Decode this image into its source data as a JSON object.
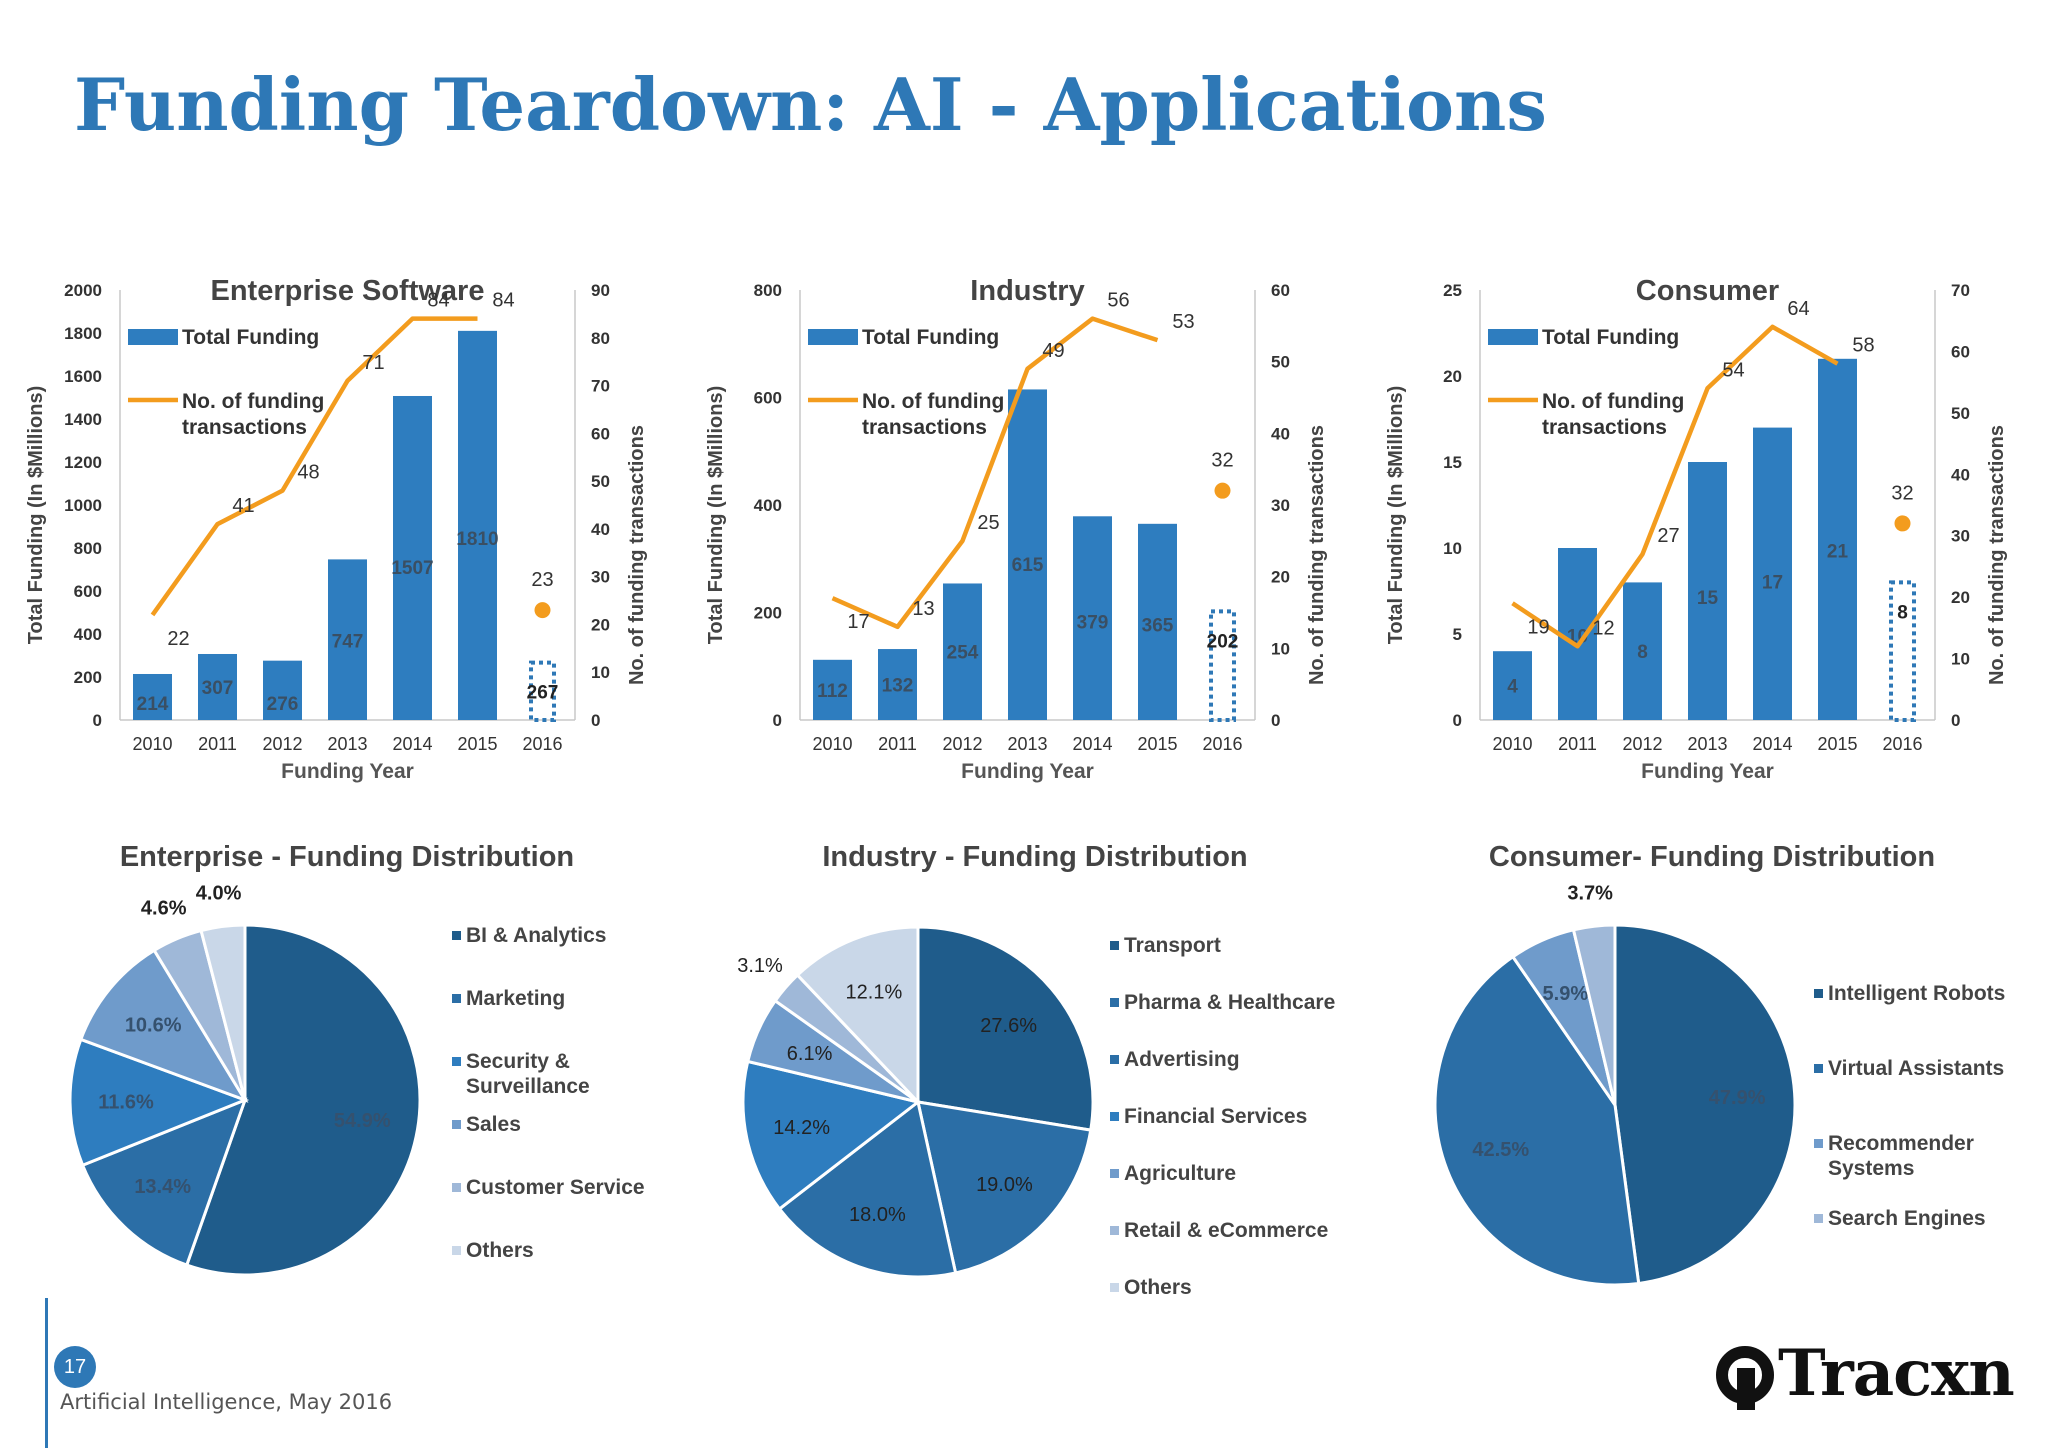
{
  "page": {
    "title": "Funding Teardown: AI - Applications",
    "page_number": "17",
    "footer": "Artificial Intelligence, May 2016",
    "logo_text": "Tracxn"
  },
  "colors": {
    "title": "#2e78b6",
    "bar": "#2e7dbf",
    "line": "#f39c1e",
    "pie_palette": [
      "#1f5c8b",
      "#2b6ea6",
      "#2e7dbf",
      "#6f9bcb",
      "#9fb8d8",
      "#c9d7e8"
    ]
  },
  "chart_data": [
    {
      "type": "bar",
      "title": "Enterprise Software",
      "xlabel": "Funding Year",
      "ylabel": "Total Funding (In $Millions)",
      "y2label": "No. of funding transactions",
      "categories": [
        "2010",
        "2011",
        "2012",
        "2013",
        "2014",
        "2015",
        "2016"
      ],
      "ylim": [
        0,
        2000
      ],
      "yticks": [
        0,
        200,
        400,
        600,
        800,
        1000,
        1200,
        1400,
        1600,
        1800,
        2000
      ],
      "y2lim": [
        0,
        90
      ],
      "y2ticks": [
        0,
        10,
        20,
        30,
        40,
        50,
        60,
        70,
        80,
        90
      ],
      "legend": [
        "Total Funding",
        "No. of funding transactions"
      ],
      "legend_position": "top-left",
      "series": [
        {
          "name": "Total Funding",
          "kind": "bar",
          "axis": "left",
          "values": [
            214,
            307,
            276,
            747,
            1507,
            1810,
            267
          ],
          "last_dotted": true
        },
        {
          "name": "No. of funding transactions",
          "kind": "line",
          "axis": "right",
          "values": [
            22,
            41,
            48,
            71,
            84,
            84,
            23
          ],
          "last_as_point": true
        }
      ]
    },
    {
      "type": "bar",
      "title": "Industry",
      "xlabel": "Funding Year",
      "ylabel": "Total Funding (In $Millions)",
      "y2label": "No. of funding transactions",
      "categories": [
        "2010",
        "2011",
        "2012",
        "2013",
        "2014",
        "2015",
        "2016"
      ],
      "ylim": [
        0,
        800
      ],
      "yticks": [
        0,
        200,
        400,
        600,
        800
      ],
      "y2lim": [
        0,
        60
      ],
      "y2ticks": [
        0,
        10,
        20,
        30,
        40,
        50,
        60
      ],
      "legend": [
        "Total Funding",
        "No. of funding transactions"
      ],
      "legend_position": "top-left",
      "series": [
        {
          "name": "Total Funding",
          "kind": "bar",
          "axis": "left",
          "values": [
            112,
            132,
            254,
            615,
            379,
            365,
            202
          ],
          "last_dotted": true
        },
        {
          "name": "No. of funding transactions",
          "kind": "line",
          "axis": "right",
          "values": [
            17,
            13,
            25,
            49,
            56,
            53,
            32
          ],
          "last_as_point": true
        }
      ]
    },
    {
      "type": "bar",
      "title": "Consumer",
      "xlabel": "Funding Year",
      "ylabel": "Total Funding (In $Millions)",
      "y2label": "No. of funding transactions",
      "categories": [
        "2010",
        "2011",
        "2012",
        "2013",
        "2014",
        "2015",
        "2016"
      ],
      "ylim": [
        0,
        25
      ],
      "yticks": [
        0,
        5,
        10,
        15,
        20,
        25
      ],
      "y2lim": [
        0,
        70
      ],
      "y2ticks": [
        0,
        10,
        20,
        30,
        40,
        50,
        60,
        70
      ],
      "legend": [
        "Total Funding",
        "No. of funding transactions"
      ],
      "legend_position": "top-left",
      "series": [
        {
          "name": "Total Funding",
          "kind": "bar",
          "axis": "left",
          "values": [
            4,
            10,
            8,
            15,
            17,
            21,
            8
          ],
          "last_dotted": true
        },
        {
          "name": "No. of funding transactions",
          "kind": "line",
          "axis": "right",
          "values": [
            19,
            12,
            27,
            54,
            64,
            58,
            32
          ],
          "last_as_point": true
        }
      ]
    },
    {
      "type": "pie",
      "title": "Enterprise  - Funding Distribution",
      "legend_position": "right",
      "slices": [
        {
          "label": "BI & Analytics",
          "value": 54.9,
          "display": "54.9%"
        },
        {
          "label": "Marketing",
          "value": 13.4,
          "display": "13.4%"
        },
        {
          "label": "Security & Surveillance",
          "value": 11.6,
          "display": "11.6%"
        },
        {
          "label": "Sales",
          "value": 10.6,
          "display": "10.6%"
        },
        {
          "label": "Customer Service",
          "value": 4.6,
          "display": "4.6%"
        },
        {
          "label": "Others",
          "value": 4.0,
          "display": "4.0%"
        }
      ]
    },
    {
      "type": "pie",
      "title": "Industry - Funding Distribution",
      "legend_position": "right",
      "slices": [
        {
          "label": "Transport",
          "value": 27.6,
          "display": "27.6%"
        },
        {
          "label": "Pharma & Healthcare",
          "value": 19.0,
          "display": "19.0%"
        },
        {
          "label": "Advertising",
          "value": 18.0,
          "display": "18.0%"
        },
        {
          "label": "Financial Services",
          "value": 14.2,
          "display": "14.2%"
        },
        {
          "label": "Agriculture",
          "value": 6.1,
          "display": "6.1%"
        },
        {
          "label": "Retail & eCommerce",
          "value": 3.1,
          "display": "3.1%"
        },
        {
          "label": "Others",
          "value": 12.1,
          "display": "12.1%"
        }
      ]
    },
    {
      "type": "pie",
      "title": "Consumer- Funding Distribution",
      "legend_position": "right",
      "slices": [
        {
          "label": "Intelligent Robots",
          "value": 47.9,
          "display": "47.9%"
        },
        {
          "label": "Virtual Assistants",
          "value": 42.5,
          "display": "42.5%"
        },
        {
          "label": "Recommender Systems",
          "value": 5.9,
          "display": "5.9%"
        },
        {
          "label": "Search Engines",
          "value": 3.7,
          "display": "3.7%"
        }
      ]
    }
  ]
}
